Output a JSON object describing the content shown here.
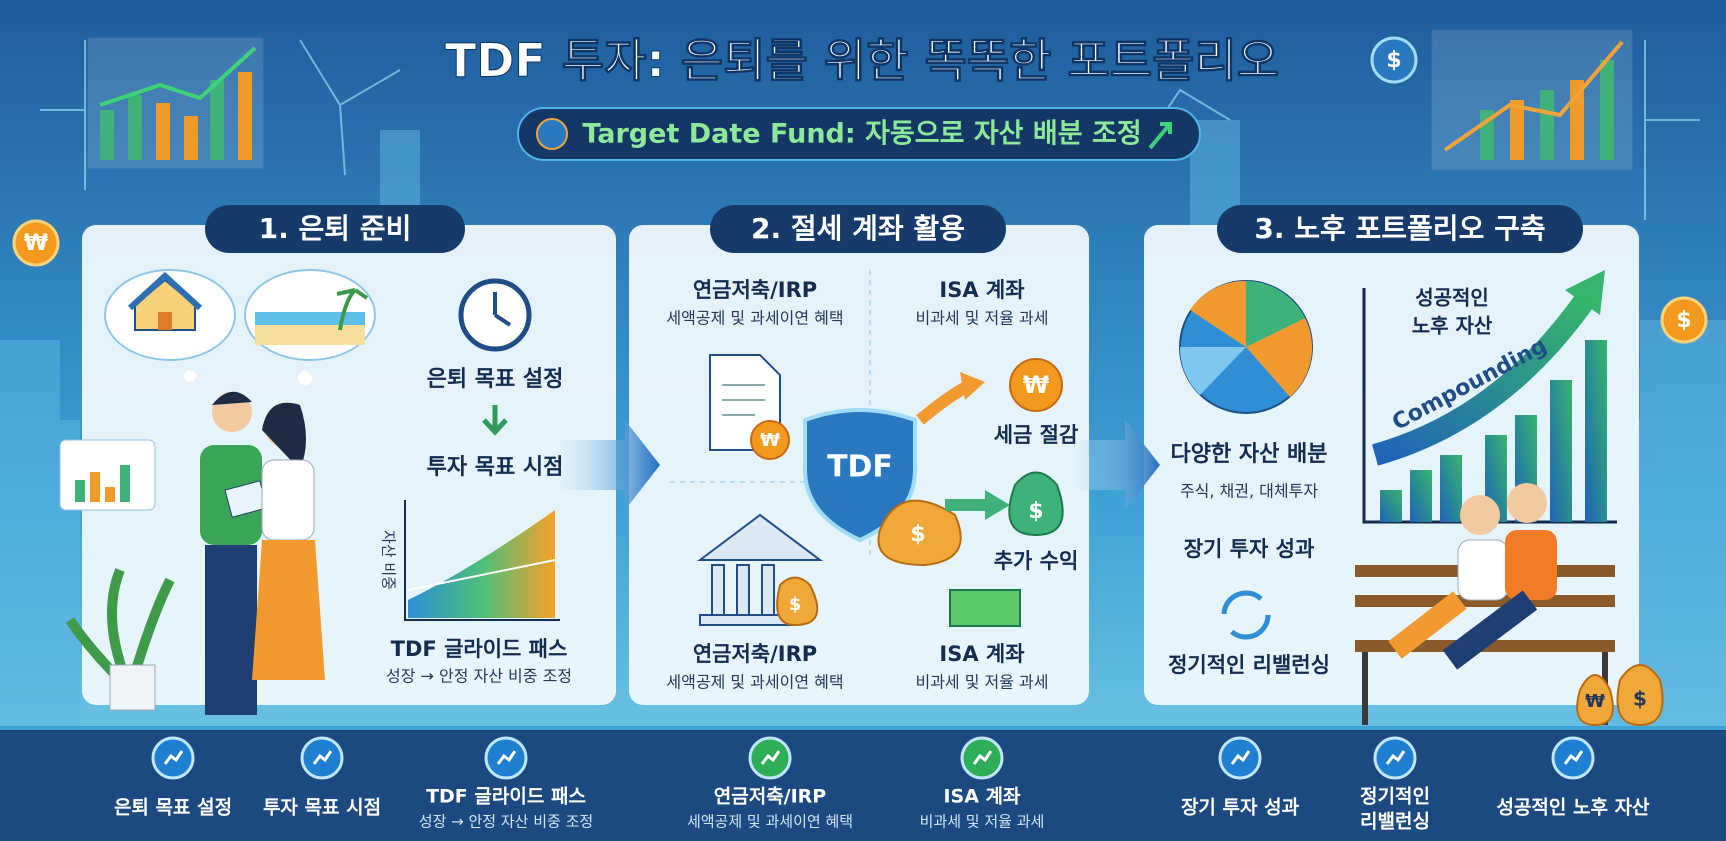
{
  "header": {
    "title": "TDF 투자: 은퇴를 위한 똑똑한 포트폴리오",
    "subtitle": "Target Date Fund: 자동으로 자산 배분 조정"
  },
  "symbols": {
    "won": "₩",
    "dollar": "$"
  },
  "panels": [
    {
      "title": "1. 은퇴 준비",
      "steps": [
        "은퇴 목표 설정",
        "투자 목표 시점"
      ],
      "chart_axis": "자산 비중",
      "chart_title": "TDF 글라이드 패스",
      "chart_caption": "성장 → 안정 자산 비중 조정"
    },
    {
      "title": "2. 절세 계좌 활용",
      "accounts": [
        {
          "name": "연금저축/IRP",
          "desc": "세액공제 및 과세이연 혜택"
        },
        {
          "name": "ISA 계좌",
          "desc": "비과세 및 저율 과세"
        },
        {
          "name": "연금저축/IRP",
          "desc": "세액공제 및 과세이연 혜택"
        },
        {
          "name": "ISA 계좌",
          "desc": "비과세 및 저율 과세"
        }
      ],
      "shield": "TDF",
      "benefits": [
        "세금 절감",
        "추가 수익"
      ]
    },
    {
      "title": "3. 노후 포트폴리오 구축",
      "items": [
        {
          "name": "다양한 자산 배분",
          "desc": "주식, 채권, 대체투자"
        },
        {
          "name": "장기 투자 성과"
        },
        {
          "name": "정기적인 리밸런싱"
        }
      ],
      "chart_title": [
        "성공적인",
        "노후 자산"
      ],
      "chart_curve": "Compounding"
    }
  ],
  "footer": [
    {
      "lines": [
        "은퇴 목표 설정"
      ]
    },
    {
      "lines": [
        "투자 목표 시점"
      ]
    },
    {
      "lines": [
        "TDF 글라이드 패스"
      ],
      "desc": "성장 → 안정 자산 비중 조정"
    },
    {
      "lines": [
        "연금저축/IRP"
      ],
      "desc": "세액공제 및 과세이연 혜택"
    },
    {
      "lines": [
        "ISA 계좌"
      ],
      "desc": "비과세 및 저율 과세"
    },
    {
      "lines": [
        "장기 투자 성과"
      ]
    },
    {
      "lines": [
        "정기적인",
        "리밸런싱"
      ]
    },
    {
      "lines": [
        "성공적인 노후 자산"
      ]
    }
  ]
}
